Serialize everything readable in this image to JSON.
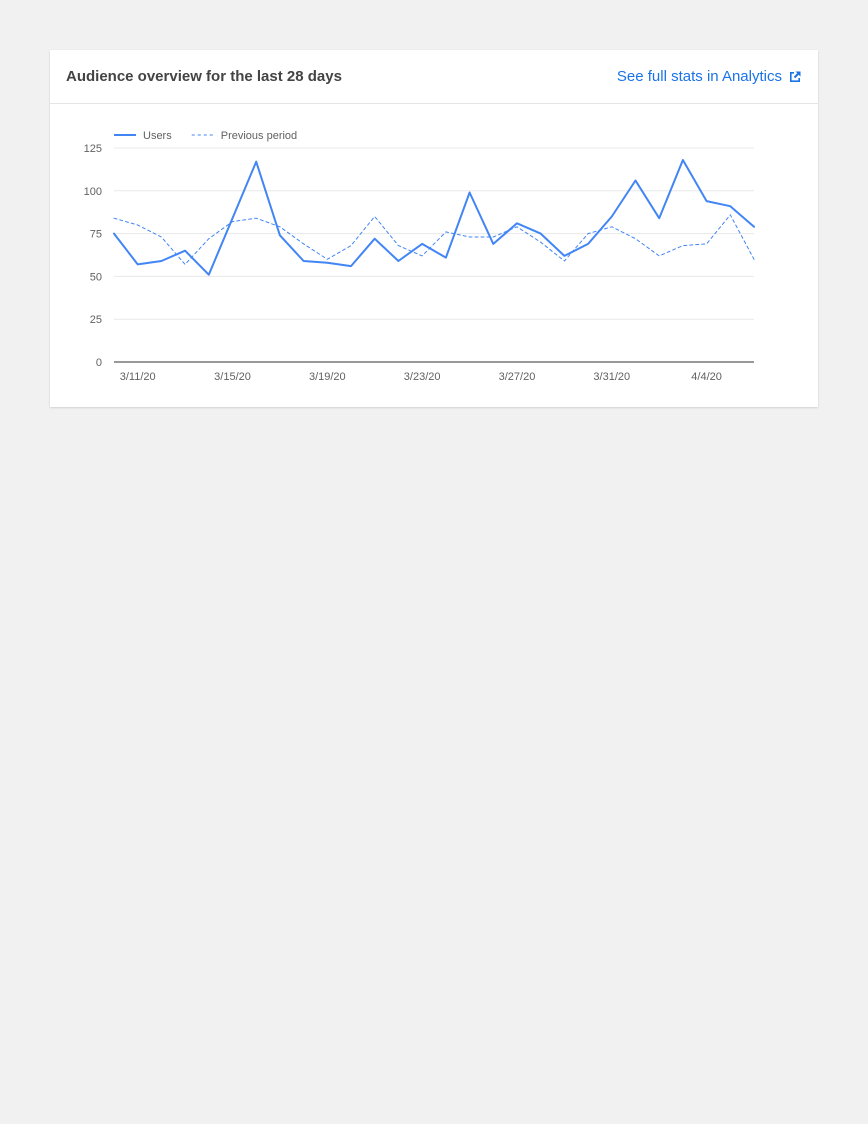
{
  "card": {
    "title": "Audience overview for the last 28 days",
    "link_label": "See full stats in Analytics",
    "link_icon": "external-link-icon"
  },
  "colors": {
    "accent": "#1a73e8",
    "series": "#4285f4",
    "grid": "#e8e8e8",
    "axis": "#333333",
    "tick_text": "#616161"
  },
  "chart_data": {
    "type": "line",
    "title": "",
    "xlabel": "",
    "ylabel": "",
    "ylim": [
      0,
      125
    ],
    "yticks": [
      0,
      25,
      50,
      75,
      100,
      125
    ],
    "grid": true,
    "legend_position": "top-left",
    "x": [
      "3/10/20",
      "3/11/20",
      "3/12/20",
      "3/13/20",
      "3/14/20",
      "3/15/20",
      "3/16/20",
      "3/17/20",
      "3/18/20",
      "3/19/20",
      "3/20/20",
      "3/21/20",
      "3/22/20",
      "3/23/20",
      "3/24/20",
      "3/25/20",
      "3/26/20",
      "3/27/20",
      "3/28/20",
      "3/29/20",
      "3/30/20",
      "3/31/20",
      "4/1/20",
      "4/2/20",
      "4/3/20",
      "4/4/20",
      "4/5/20",
      "4/6/20"
    ],
    "x_tick_labels": [
      "3/11/20",
      "3/15/20",
      "3/19/20",
      "3/23/20",
      "3/27/20",
      "3/31/20",
      "4/4/20"
    ],
    "series": [
      {
        "name": "Users",
        "style": "solid",
        "values": [
          75,
          57,
          59,
          65,
          51,
          84,
          117,
          74,
          59,
          58,
          56,
          72,
          59,
          69,
          61,
          99,
          69,
          81,
          75,
          62,
          69,
          85,
          106,
          84,
          118,
          94,
          91,
          79
        ]
      },
      {
        "name": "Previous period",
        "style": "dashed",
        "values": [
          84,
          80,
          73,
          57,
          72,
          82,
          84,
          79,
          69,
          60,
          68,
          85,
          68,
          62,
          76,
          73,
          73,
          79,
          70,
          59,
          75,
          79,
          72,
          62,
          68,
          69,
          86,
          60
        ]
      }
    ]
  }
}
